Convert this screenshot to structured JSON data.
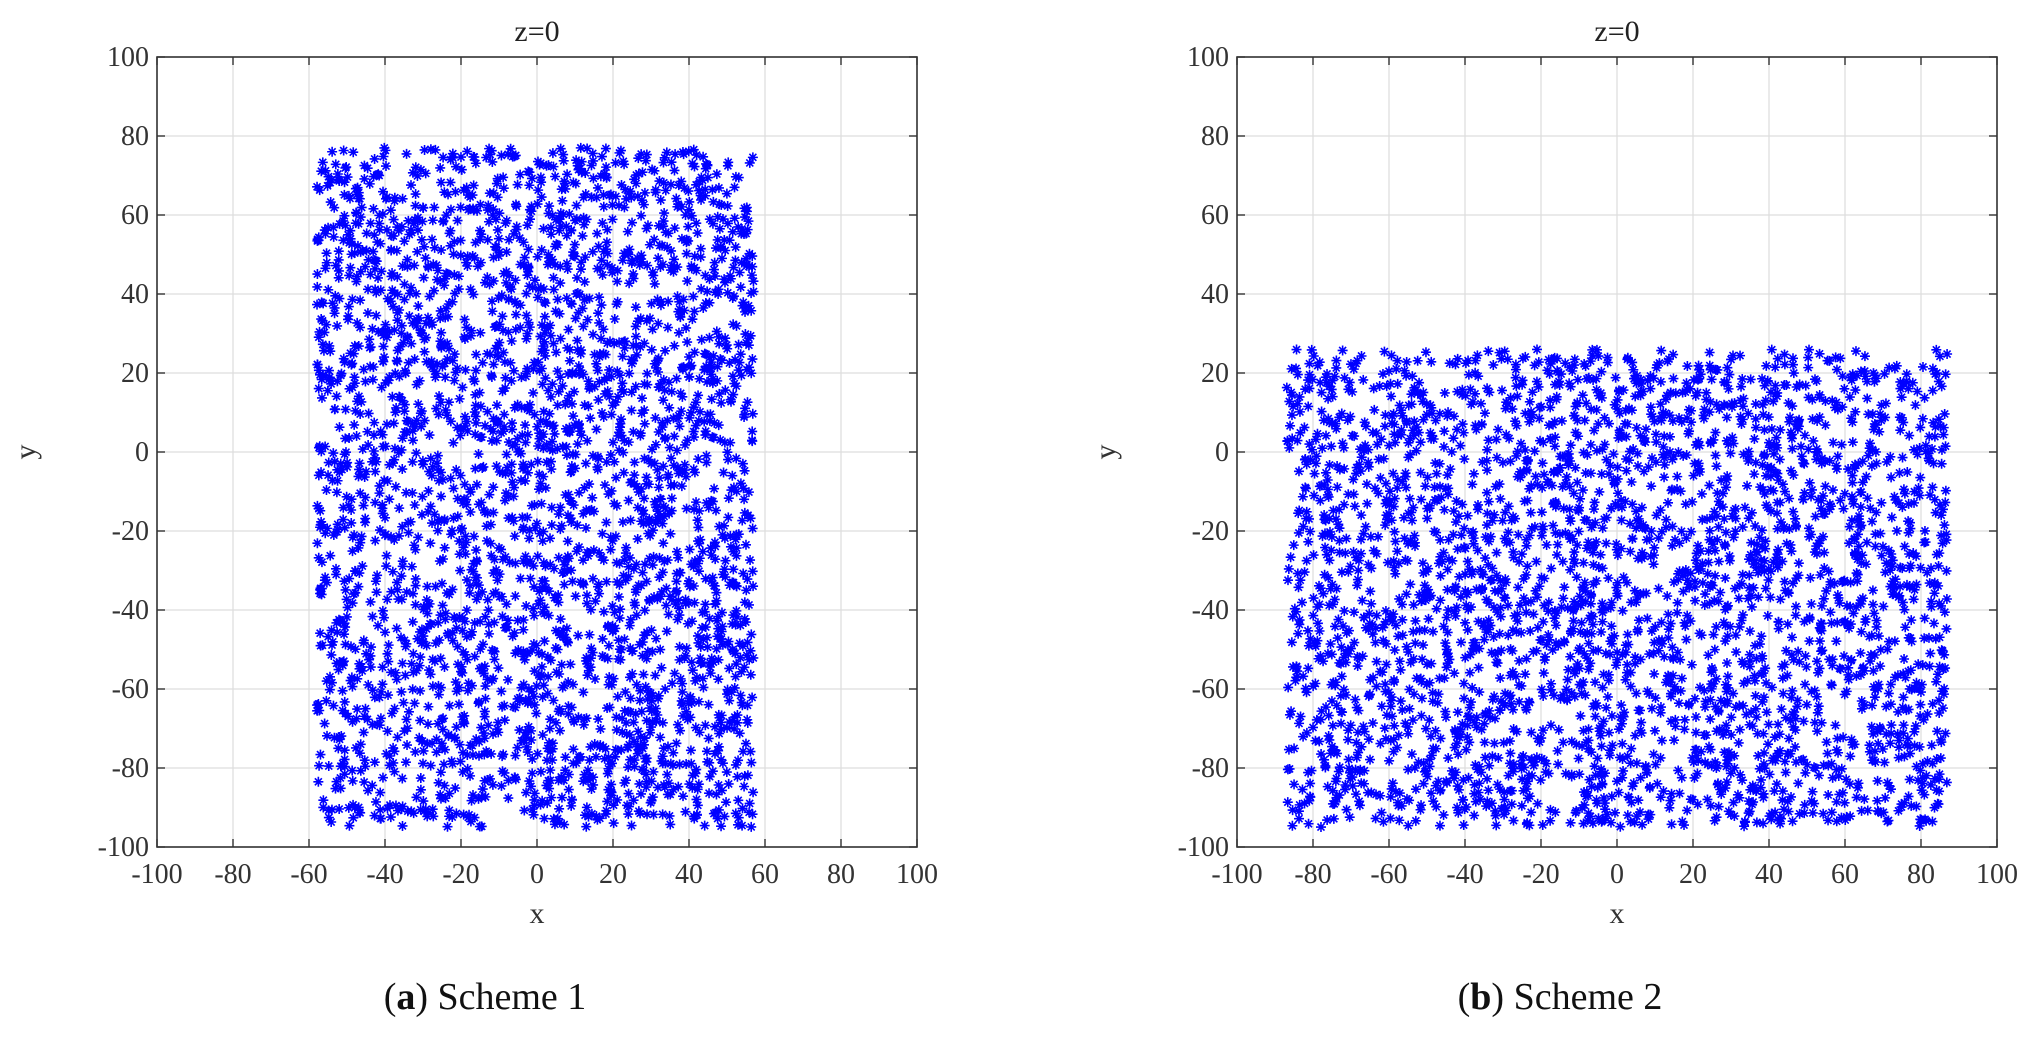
{
  "colors": {
    "marker": "#0000ff",
    "grid": "#dddddd",
    "axes": "#333333",
    "text": "#333333"
  },
  "figure": {
    "captions": [
      {
        "letter": "a",
        "text": "Scheme 1"
      },
      {
        "letter": "b",
        "text": "Scheme 2"
      }
    ]
  },
  "chart_data": [
    {
      "type": "scatter",
      "title": "z=0",
      "xlabel": "x",
      "ylabel": "y",
      "xlim": [
        -100,
        100
      ],
      "ylim": [
        -100,
        100
      ],
      "xticks": [
        -100,
        -80,
        -60,
        -40,
        -20,
        0,
        20,
        40,
        60,
        80,
        100
      ],
      "yticks": [
        -100,
        -80,
        -60,
        -40,
        -20,
        0,
        20,
        40,
        60,
        80,
        100
      ],
      "grid": true,
      "marker": "asterisk",
      "marker_color": "#0000ff",
      "series": [
        {
          "point_region": {
            "x": [
              -58,
              57
            ],
            "y": [
              -95,
              77
            ]
          },
          "point_count": 3000,
          "distribution": "uniform random"
        }
      ]
    },
    {
      "type": "scatter",
      "title": "z=0",
      "xlabel": "x",
      "ylabel": "y",
      "xlim": [
        -100,
        100
      ],
      "ylim": [
        -100,
        100
      ],
      "xticks": [
        -100,
        -80,
        -60,
        -40,
        -20,
        0,
        20,
        40,
        60,
        80,
        100
      ],
      "yticks": [
        -100,
        -80,
        -60,
        -40,
        -20,
        0,
        20,
        40,
        60,
        80,
        100
      ],
      "grid": true,
      "marker": "asterisk",
      "marker_color": "#0000ff",
      "series": [
        {
          "point_region": {
            "x": [
              -87,
              87
            ],
            "y": [
              -95,
              26
            ]
          },
          "point_count": 3000,
          "distribution": "uniform random"
        }
      ]
    }
  ]
}
